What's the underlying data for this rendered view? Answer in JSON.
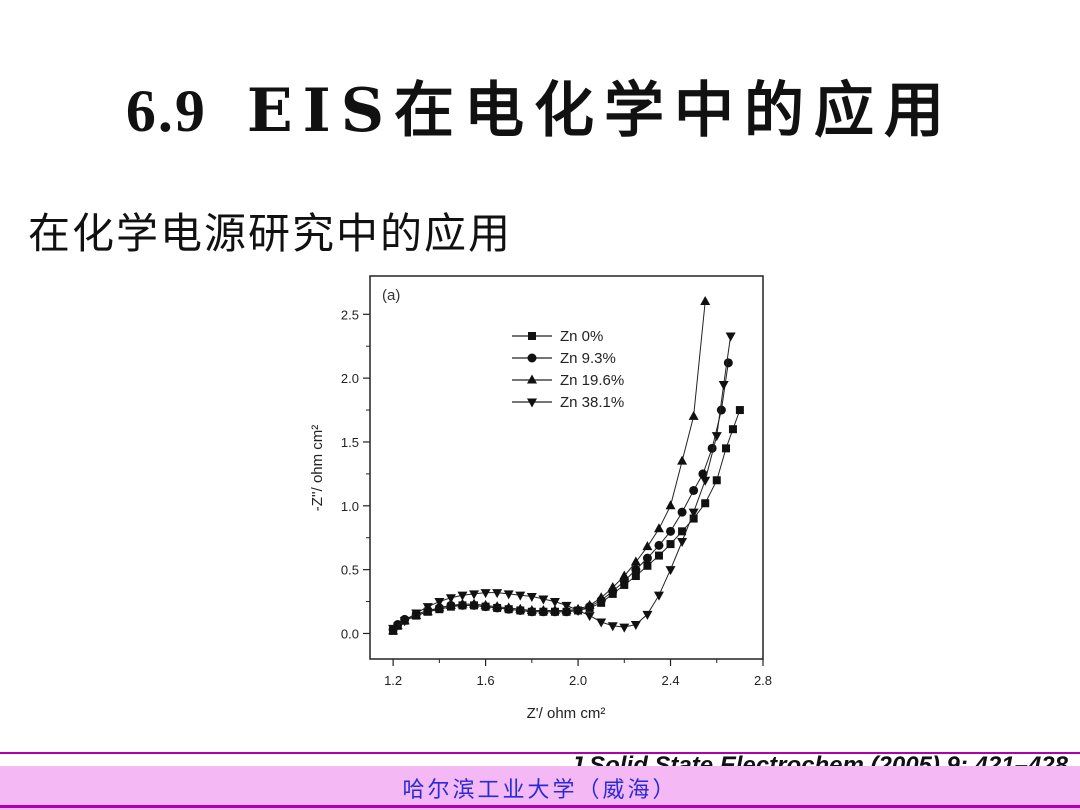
{
  "slide": {
    "title_number": "6.9",
    "title_text": "EIS在电化学中的应用",
    "subtitle": "在化学电源研究中的应用",
    "citation": "J Solid State Electrochem (2005) 9: 421–428",
    "footer": "哈尔滨工业大学（威海）"
  },
  "chart_data": {
    "type": "scatter",
    "panel_label": "(a)",
    "xlabel": "Z'/ ohm cm²",
    "ylabel": "-Z''/ ohm cm²",
    "xlim": [
      1.1,
      2.8
    ],
    "ylim": [
      -0.2,
      2.8
    ],
    "xticks": [
      1.2,
      1.6,
      2.0,
      2.4,
      2.8
    ],
    "xtick_labels": [
      "1.2",
      "1.6",
      "2.0",
      "2.4",
      "2.8"
    ],
    "yticks": [
      0.0,
      0.5,
      1.0,
      1.5,
      2.0,
      2.5
    ],
    "ytick_labels": [
      "0.0",
      "0.5",
      "1.0",
      "1.5",
      "2.0",
      "2.5"
    ],
    "legend_position": "top-center",
    "series": [
      {
        "name": "Zn 0%",
        "marker": "square",
        "x": [
          1.2,
          1.22,
          1.25,
          1.3,
          1.35,
          1.4,
          1.45,
          1.5,
          1.55,
          1.6,
          1.65,
          1.7,
          1.75,
          1.8,
          1.85,
          1.9,
          1.95,
          2.0,
          2.05,
          2.1,
          2.15,
          2.2,
          2.25,
          2.3,
          2.35,
          2.4,
          2.45,
          2.5,
          2.55,
          2.6,
          2.64,
          2.67,
          2.7
        ],
        "y": [
          0.02,
          0.06,
          0.1,
          0.14,
          0.17,
          0.19,
          0.21,
          0.22,
          0.22,
          0.21,
          0.2,
          0.19,
          0.18,
          0.17,
          0.17,
          0.17,
          0.17,
          0.18,
          0.2,
          0.24,
          0.31,
          0.38,
          0.45,
          0.53,
          0.61,
          0.7,
          0.8,
          0.9,
          1.02,
          1.2,
          1.45,
          1.6,
          1.75
        ]
      },
      {
        "name": "Zn 9.3%",
        "marker": "circle",
        "x": [
          1.2,
          1.22,
          1.25,
          1.3,
          1.35,
          1.4,
          1.45,
          1.5,
          1.55,
          1.6,
          1.65,
          1.7,
          1.75,
          1.8,
          1.85,
          1.9,
          1.95,
          2.0,
          2.05,
          2.1,
          2.15,
          2.2,
          2.25,
          2.3,
          2.35,
          2.4,
          2.45,
          2.5,
          2.54,
          2.58,
          2.62,
          2.65
        ],
        "y": [
          0.03,
          0.07,
          0.11,
          0.15,
          0.18,
          0.2,
          0.22,
          0.22,
          0.22,
          0.21,
          0.2,
          0.19,
          0.18,
          0.17,
          0.17,
          0.17,
          0.17,
          0.18,
          0.21,
          0.26,
          0.33,
          0.41,
          0.5,
          0.59,
          0.69,
          0.8,
          0.95,
          1.12,
          1.25,
          1.45,
          1.75,
          2.12
        ]
      },
      {
        "name": "Zn 19.6%",
        "marker": "triangle-up",
        "x": [
          1.2,
          1.22,
          1.25,
          1.3,
          1.35,
          1.4,
          1.45,
          1.5,
          1.55,
          1.6,
          1.65,
          1.7,
          1.75,
          1.8,
          1.85,
          1.9,
          1.95,
          2.0,
          2.05,
          2.1,
          2.15,
          2.2,
          2.25,
          2.3,
          2.35,
          2.4,
          2.45,
          2.5,
          2.55
        ],
        "y": [
          0.02,
          0.06,
          0.1,
          0.14,
          0.17,
          0.2,
          0.22,
          0.23,
          0.23,
          0.22,
          0.21,
          0.2,
          0.19,
          0.18,
          0.18,
          0.18,
          0.18,
          0.19,
          0.22,
          0.28,
          0.36,
          0.45,
          0.56,
          0.68,
          0.82,
          1.0,
          1.35,
          1.7,
          2.6
        ]
      },
      {
        "name": "Zn 38.1%",
        "marker": "triangle-down",
        "x": [
          1.2,
          1.25,
          1.3,
          1.35,
          1.4,
          1.45,
          1.5,
          1.55,
          1.6,
          1.65,
          1.7,
          1.75,
          1.8,
          1.85,
          1.9,
          1.95,
          2.0,
          2.05,
          2.1,
          2.15,
          2.2,
          2.25,
          2.3,
          2.35,
          2.4,
          2.45,
          2.5,
          2.55,
          2.6,
          2.63,
          2.66
        ],
        "y": [
          0.04,
          0.1,
          0.16,
          0.21,
          0.25,
          0.28,
          0.3,
          0.31,
          0.32,
          0.32,
          0.31,
          0.3,
          0.29,
          0.27,
          0.25,
          0.22,
          0.18,
          0.14,
          0.09,
          0.06,
          0.05,
          0.07,
          0.15,
          0.3,
          0.5,
          0.72,
          0.95,
          1.2,
          1.55,
          1.95,
          2.33
        ]
      }
    ]
  }
}
